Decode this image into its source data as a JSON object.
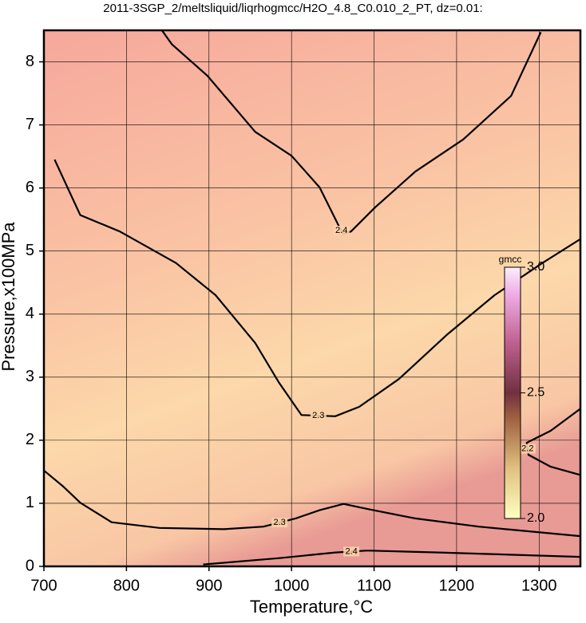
{
  "chart_data": {
    "type": "contour",
    "title": "2011-3SGP_2/meltsliquid/liqrhogmcc/H2O_4.8_C0.010_2_PT, dz=0.01:",
    "x_label": "Temperature,°C",
    "y_label": "Pressure,x100MPa",
    "xlim": [
      700,
      1350
    ],
    "xticks": [
      700,
      800,
      900,
      1000,
      1100,
      1200,
      1300
    ],
    "ylim": [
      0,
      8.5
    ],
    "yticks": [
      0,
      1,
      2,
      3,
      4,
      5,
      6,
      7,
      8
    ],
    "grid": true,
    "colorbar": {
      "label": "gmcc",
      "lim": [
        2,
        3
      ],
      "ticks": [
        {
          "value": 2,
          "label": "2.0"
        },
        2.5,
        {
          "value": 3,
          "label": "3.0"
        }
      ]
    },
    "contours": [
      {
        "level": 2.4,
        "color": "#000000",
        "x": [
          843,
          855,
          898,
          956,
          1000,
          1034,
          1058,
          1063,
          1072,
          1101,
          1150,
          1208,
          1266,
          1302
        ],
        "y": [
          8.5,
          8.28,
          7.78,
          6.89,
          6.51,
          6.01,
          5.38,
          5.27,
          5.31,
          5.69,
          6.26,
          6.77,
          7.46,
          8.47
        ]
      },
      {
        "level": 2.3,
        "color": "#000000",
        "x": [
          713,
          744,
          792,
          860,
          908,
          956,
          985,
          1012,
          1053,
          1082,
          1130,
          1188,
          1246,
          1304,
          1350
        ],
        "y": [
          6.45,
          5.57,
          5.31,
          4.81,
          4.3,
          3.54,
          2.91,
          2.4,
          2.38,
          2.53,
          2.97,
          3.67,
          4.3,
          4.81,
          5.19
        ]
      },
      {
        "level": 2.3,
        "color": "#000000",
        "x": [
          700,
          724,
          744,
          782,
          840,
          918,
          966,
          1005,
          1034,
          1063,
          1092,
          1150,
          1227,
          1350
        ],
        "y": [
          1.52,
          1.26,
          1.01,
          0.7,
          0.61,
          0.59,
          0.63,
          0.76,
          0.89,
          0.99,
          0.91,
          0.76,
          0.63,
          0.48
        ]
      },
      {
        "level": 2.2,
        "color": "#000000",
        "x": [
          1350,
          1314,
          1285,
          1287,
          1314,
          1350
        ],
        "y": [
          2.5,
          2.15,
          1.96,
          1.77,
          1.58,
          1.45
        ]
      },
      {
        "level": 2.4,
        "color": "#000000",
        "x": [
          893,
          985,
          1053,
          1092,
          1179,
          1350
        ],
        "y": [
          0.03,
          0.13,
          0.22,
          0.25,
          0.22,
          0.15
        ]
      }
    ]
  }
}
